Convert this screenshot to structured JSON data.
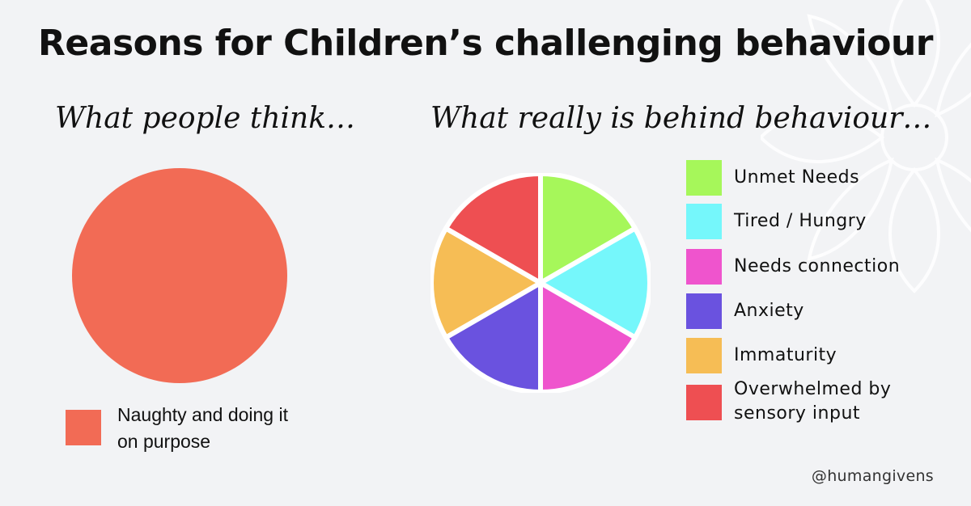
{
  "title": "Reasons for Children’s challenging behaviour",
  "left_panel": {
    "subtitle": "What people think…",
    "legend_label": "Naughty and doing it on purpose"
  },
  "right_panel": {
    "subtitle": "What really is behind behaviour…"
  },
  "credit": "@humangivens",
  "chart_data": [
    {
      "type": "pie",
      "title": "What people think…",
      "categories": [
        "Naughty and doing it on purpose"
      ],
      "values": [
        100
      ],
      "colors": [
        "#f26b55"
      ],
      "legend": "bottom-left"
    },
    {
      "type": "pie",
      "title": "What really is behind behaviour…",
      "categories": [
        "Unmet Needs",
        "Tired / Hungry",
        "Needs connection",
        "Anxiety",
        "Immaturity",
        "Overwhelmed by sensory input"
      ],
      "values": [
        16.7,
        16.7,
        16.7,
        16.7,
        16.7,
        16.7
      ],
      "colors": [
        "#a6f75a",
        "#75f7fb",
        "#ef54cd",
        "#6a52df",
        "#f6bd55",
        "#ee4f52"
      ],
      "legend": "right"
    }
  ]
}
